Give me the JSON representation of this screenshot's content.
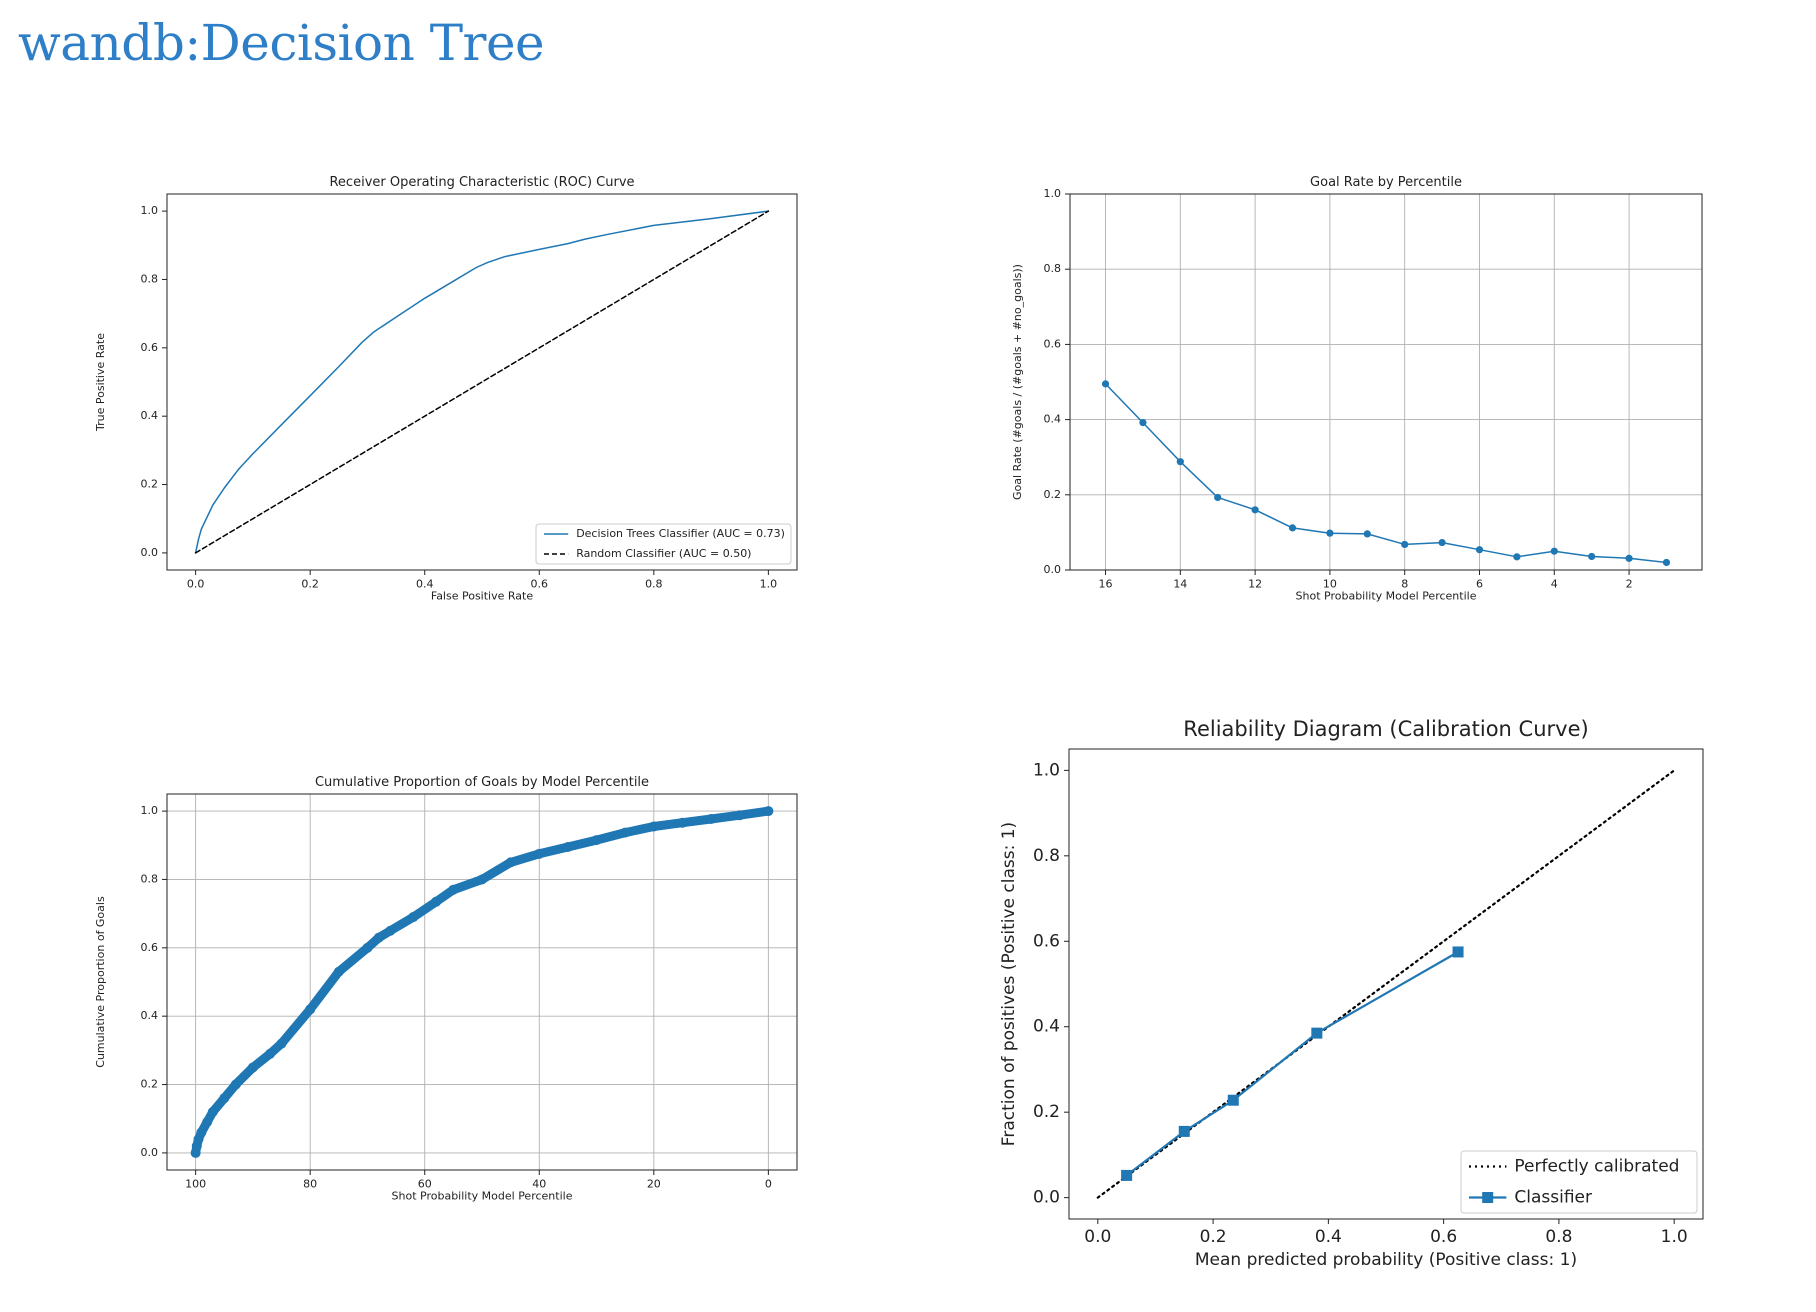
{
  "page": {
    "title": "wandb:Decision Tree"
  },
  "chart_data": [
    {
      "id": "roc",
      "type": "line",
      "title": "Receiver Operating Characteristic (ROC) Curve",
      "xlabel": "False Positive Rate",
      "ylabel": "True Positive Rate",
      "xlim": [
        -0.05,
        1.05
      ],
      "ylim": [
        -0.05,
        1.05
      ],
      "xticks": [
        0.0,
        0.2,
        0.4,
        0.6,
        0.8,
        1.0
      ],
      "yticks": [
        0.0,
        0.2,
        0.4,
        0.6,
        0.8,
        1.0
      ],
      "xtick_labels": [
        "0.0",
        "0.2",
        "0.4",
        "0.6",
        "0.8",
        "1.0"
      ],
      "ytick_labels": [
        "0.0",
        "0.2",
        "0.4",
        "0.6",
        "0.8",
        "1.0"
      ],
      "grid": false,
      "legend": "lower right",
      "series": [
        {
          "name": "Decision Trees Classifier (AUC = 0.73)",
          "color": "#1f77b4",
          "style": "solid",
          "x": [
            0.0,
            0.005,
            0.01,
            0.03,
            0.05,
            0.075,
            0.1,
            0.15,
            0.2,
            0.25,
            0.29,
            0.31,
            0.35,
            0.4,
            0.45,
            0.49,
            0.51,
            0.54,
            0.6,
            0.65,
            0.68,
            0.72,
            0.8,
            0.9,
            1.0
          ],
          "y": [
            0.0,
            0.04,
            0.07,
            0.14,
            0.19,
            0.245,
            0.29,
            0.375,
            0.46,
            0.545,
            0.615,
            0.645,
            0.69,
            0.745,
            0.795,
            0.835,
            0.85,
            0.867,
            0.888,
            0.905,
            0.918,
            0.932,
            0.958,
            0.978,
            1.0
          ]
        },
        {
          "name": "Random Classifier (AUC = 0.50)",
          "color": "#000000",
          "style": "dashed",
          "x": [
            0.0,
            1.0
          ],
          "y": [
            0.0,
            1.0
          ]
        }
      ]
    },
    {
      "id": "goal_rate",
      "type": "line",
      "title": "Goal Rate by Percentile",
      "xlabel": "Shot Probability Model Percentile",
      "ylabel": "Goal Rate (#goals / (#goals + #no_goals))",
      "xlim": [
        16.95,
        0.05
      ],
      "ylim": [
        0.0,
        1.0
      ],
      "xticks": [
        16,
        14,
        12,
        10,
        8,
        6,
        4,
        2
      ],
      "yticks": [
        0.0,
        0.2,
        0.4,
        0.6,
        0.8,
        1.0
      ],
      "xtick_labels": [
        "16",
        "14",
        "12",
        "10",
        "8",
        "6",
        "4",
        "2"
      ],
      "ytick_labels": [
        "0.0",
        "0.2",
        "0.4",
        "0.6",
        "0.8",
        "1.0"
      ],
      "grid": true,
      "series": [
        {
          "color": "#1f77b4",
          "marker": "circle",
          "x": [
            16,
            15,
            14,
            13,
            12,
            11,
            10,
            9,
            8,
            7,
            6,
            5,
            4,
            3,
            2,
            1
          ],
          "y": [
            0.495,
            0.392,
            0.288,
            0.193,
            0.16,
            0.112,
            0.098,
            0.096,
            0.068,
            0.073,
            0.054,
            0.035,
            0.05,
            0.036,
            0.031,
            0.02
          ]
        }
      ]
    },
    {
      "id": "cumulative",
      "type": "scatter",
      "title": "Cumulative Proportion of Goals by Model Percentile",
      "xlabel": "Shot Probability Model Percentile",
      "ylabel": "Cumulative Proportion of Goals",
      "xlim": [
        105,
        -5
      ],
      "ylim": [
        -0.05,
        1.05
      ],
      "xticks": [
        100,
        80,
        60,
        40,
        20,
        0
      ],
      "yticks": [
        0.0,
        0.2,
        0.4,
        0.6,
        0.8,
        1.0
      ],
      "xtick_labels": [
        "100",
        "80",
        "60",
        "40",
        "20",
        "0"
      ],
      "ytick_labels": [
        "0.0",
        "0.2",
        "0.4",
        "0.6",
        "0.8",
        "1.0"
      ],
      "grid": true,
      "series": [
        {
          "color": "#1f77b4",
          "marker": "circle",
          "x": [
            100,
            99.8,
            99.5,
            99,
            98,
            97,
            95,
            93,
            90,
            87,
            85,
            80,
            75,
            70,
            68,
            66,
            62,
            58,
            55,
            50,
            45,
            40,
            35,
            30,
            25,
            20,
            15,
            10,
            5,
            0
          ],
          "y": [
            0.0,
            0.02,
            0.04,
            0.06,
            0.09,
            0.12,
            0.16,
            0.2,
            0.25,
            0.29,
            0.32,
            0.42,
            0.53,
            0.6,
            0.63,
            0.65,
            0.69,
            0.735,
            0.77,
            0.8,
            0.85,
            0.875,
            0.895,
            0.915,
            0.937,
            0.955,
            0.966,
            0.977,
            0.988,
            1.0
          ]
        }
      ]
    },
    {
      "id": "calibration",
      "type": "line",
      "title": "Reliability Diagram (Calibration Curve)",
      "xlabel": "Mean predicted probability (Positive class: 1)",
      "ylabel": "Fraction of positives (Positive class: 1)",
      "xlim": [
        -0.05,
        1.05
      ],
      "ylim": [
        -0.05,
        1.05
      ],
      "xticks": [
        0.0,
        0.2,
        0.4,
        0.6,
        0.8,
        1.0
      ],
      "yticks": [
        0.0,
        0.2,
        0.4,
        0.6,
        0.8,
        1.0
      ],
      "xtick_labels": [
        "0.0",
        "0.2",
        "0.4",
        "0.6",
        "0.8",
        "1.0"
      ],
      "ytick_labels": [
        "0.0",
        "0.2",
        "0.4",
        "0.6",
        "0.8",
        "1.0"
      ],
      "grid": false,
      "legend": "lower right",
      "series": [
        {
          "name": "Perfectly calibrated",
          "color": "#000000",
          "style": "dotted",
          "x": [
            0.0,
            1.0
          ],
          "y": [
            0.0,
            1.0
          ]
        },
        {
          "name": "Classifier",
          "color": "#1f77b4",
          "marker": "square",
          "x": [
            0.05,
            0.15,
            0.235,
            0.38,
            0.625
          ],
          "y": [
            0.052,
            0.155,
            0.228,
            0.385,
            0.575
          ]
        }
      ]
    }
  ]
}
